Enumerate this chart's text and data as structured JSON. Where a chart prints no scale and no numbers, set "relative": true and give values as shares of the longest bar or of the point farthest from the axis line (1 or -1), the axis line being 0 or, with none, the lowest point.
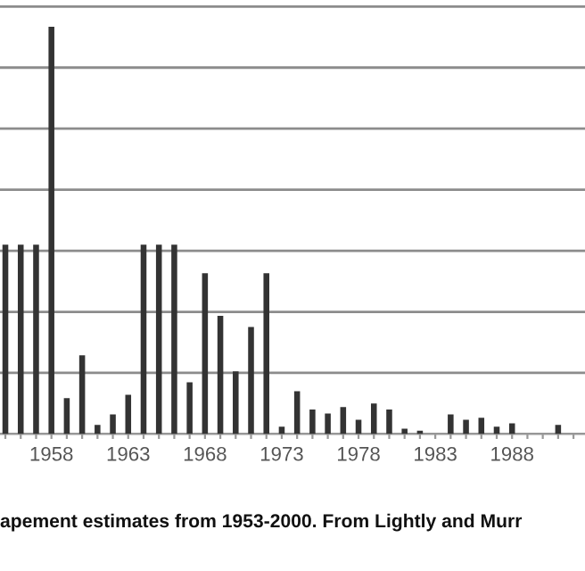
{
  "chart_data": {
    "type": "bar",
    "relative": true,
    "categories": [
      null,
      null,
      null,
      "1958",
      null,
      null,
      null,
      null,
      "1963",
      null,
      null,
      null,
      null,
      "1968",
      null,
      null,
      null,
      null,
      "1973",
      null,
      null,
      null,
      null,
      "1978",
      null,
      null,
      null,
      null,
      "1983",
      null,
      null,
      null,
      null,
      "1988",
      null,
      null,
      null,
      null
    ],
    "values": [
      0.465,
      0.465,
      0.465,
      1,
      0.088,
      0.193,
      0.022,
      0.048,
      0.096,
      0.465,
      0.465,
      0.465,
      0.127,
      0.395,
      0.29,
      0.154,
      0.263,
      0.395,
      0.018,
      0.105,
      0.06,
      0.05,
      0.066,
      0.035,
      0.075,
      0.06,
      0.013,
      0.008,
      0,
      0.048,
      0.035,
      0.04,
      0.018,
      0.026,
      0,
      0,
      0.022,
      0
    ],
    "color": "#333333",
    "grid": "y",
    "tick_labels": "x",
    "annotations": [
      "apement estimates from 1953-2000. From Lightly and Murr"
    ]
  }
}
